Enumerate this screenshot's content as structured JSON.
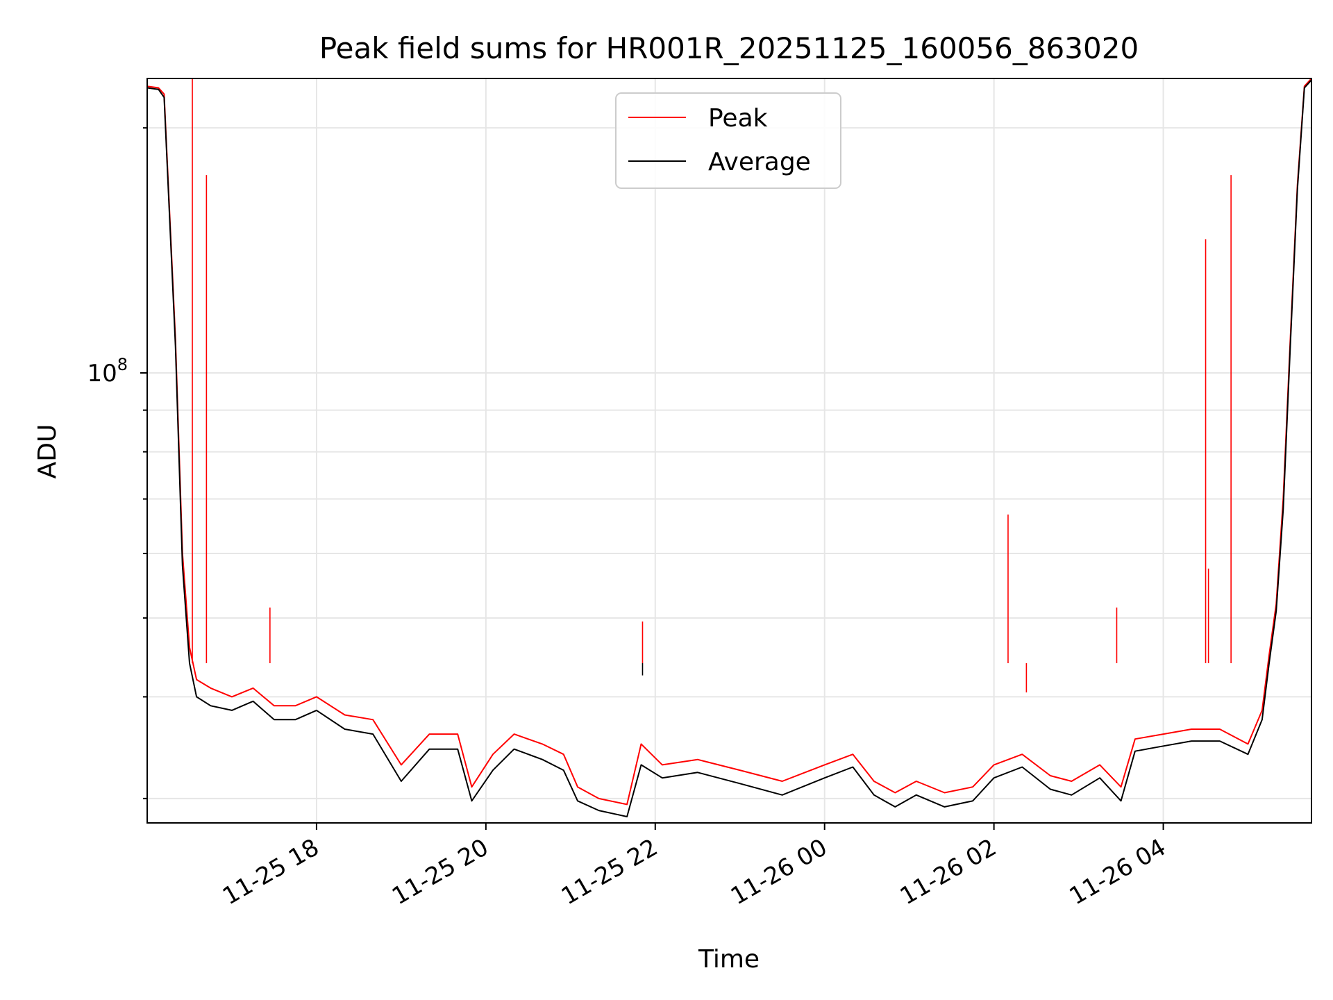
{
  "chart_data": {
    "type": "line",
    "title": "Peak field sums for HR001R_20251125_160056_863020",
    "xlabel": "Time",
    "ylabel": "ADU",
    "y_scale": "log",
    "grid": true,
    "legend_position": "upper center",
    "xlim": [
      "2025-11-25 16:00",
      "2025-11-26 05:45"
    ],
    "ylim": [
      28000000,
      230000000
    ],
    "x_ticks": [
      {
        "value": "2025-11-25 18:00",
        "label": "11-25 18"
      },
      {
        "value": "2025-11-25 20:00",
        "label": "11-25 20"
      },
      {
        "value": "2025-11-25 22:00",
        "label": "11-25 22"
      },
      {
        "value": "2025-11-26 00:00",
        "label": "11-26 00"
      },
      {
        "value": "2025-11-26 02:00",
        "label": "11-26 02"
      },
      {
        "value": "2025-11-26 04:00",
        "label": "11-26 04"
      }
    ],
    "y_ticks": [
      {
        "value": 100000000,
        "label_base": "10",
        "label_exp": "8"
      }
    ],
    "series": [
      {
        "name": "Peak",
        "color": "#ff0000",
        "x": [
          "2025-11-25 16:00",
          "2025-11-25 16:08",
          "2025-11-25 16:12",
          "2025-11-25 16:20",
          "2025-11-25 16:25",
          "2025-11-25 16:30",
          "2025-11-25 16:35",
          "2025-11-25 16:45",
          "2025-11-25 17:00",
          "2025-11-25 17:15",
          "2025-11-25 17:30",
          "2025-11-25 17:45",
          "2025-11-25 18:00",
          "2025-11-25 18:20",
          "2025-11-25 18:40",
          "2025-11-25 19:00",
          "2025-11-25 19:20",
          "2025-11-25 19:40",
          "2025-11-25 19:50",
          "2025-11-25 20:05",
          "2025-11-25 20:20",
          "2025-11-25 20:40",
          "2025-11-25 20:55",
          "2025-11-25 21:05",
          "2025-11-25 21:20",
          "2025-11-25 21:40",
          "2025-11-25 21:50",
          "2025-11-25 22:05",
          "2025-11-25 22:30",
          "2025-11-25 23:00",
          "2025-11-25 23:30",
          "2025-11-26 00:00",
          "2025-11-26 00:20",
          "2025-11-26 00:35",
          "2025-11-26 00:50",
          "2025-11-26 01:05",
          "2025-11-26 01:25",
          "2025-11-26 01:45",
          "2025-11-26 02:00",
          "2025-11-26 02:20",
          "2025-11-26 02:40",
          "2025-11-26 02:55",
          "2025-11-26 03:15",
          "2025-11-26 03:30",
          "2025-11-26 03:40",
          "2025-11-26 04:00",
          "2025-11-26 04:20",
          "2025-11-26 04:40",
          "2025-11-26 05:00",
          "2025-11-26 05:10",
          "2025-11-26 05:15",
          "2025-11-26 05:20",
          "2025-11-26 05:25",
          "2025-11-26 05:30",
          "2025-11-26 05:35",
          "2025-11-26 05:40",
          "2025-11-26 05:45"
        ],
        "y": [
          225000000,
          224000000,
          220000000,
          110000000,
          60000000,
          46000000,
          42000000,
          41000000,
          40000000,
          41000000,
          39000000,
          39000000,
          40000000,
          38000000,
          37500000,
          33000000,
          36000000,
          36000000,
          31000000,
          34000000,
          36000000,
          35000000,
          34000000,
          31000000,
          30000000,
          29500000,
          35000000,
          33000000,
          33500000,
          32500000,
          31500000,
          33000000,
          34000000,
          31500000,
          30500000,
          31500000,
          30500000,
          31000000,
          33000000,
          34000000,
          32000000,
          31500000,
          33000000,
          31000000,
          35500000,
          36000000,
          36500000,
          36500000,
          35000000,
          38500000,
          45000000,
          52000000,
          70000000,
          110000000,
          170000000,
          225000000,
          230000000
        ],
        "spikes": [
          {
            "x": "2025-11-25 16:32",
            "y": 230000000
          },
          {
            "x": "2025-11-25 16:42",
            "y": 175000000
          },
          {
            "x": "2025-11-25 17:27",
            "y": 51500000
          },
          {
            "x": "2025-11-25 21:51",
            "y": 49500000
          },
          {
            "x": "2025-11-26 02:10",
            "y": 67000000
          },
          {
            "x": "2025-11-26 02:23",
            "y": 40500000
          },
          {
            "x": "2025-11-26 03:27",
            "y": 51500000
          },
          {
            "x": "2025-11-26 04:30",
            "y": 146000000
          },
          {
            "x": "2025-11-26 04:32",
            "y": 57500000
          },
          {
            "x": "2025-11-26 04:48",
            "y": 175000000
          }
        ]
      },
      {
        "name": "Average",
        "color": "#000000",
        "x": [
          "2025-11-25 16:00",
          "2025-11-25 16:08",
          "2025-11-25 16:12",
          "2025-11-25 16:20",
          "2025-11-25 16:25",
          "2025-11-25 16:30",
          "2025-11-25 16:35",
          "2025-11-25 16:45",
          "2025-11-25 17:00",
          "2025-11-25 17:15",
          "2025-11-25 17:30",
          "2025-11-25 17:45",
          "2025-11-25 18:00",
          "2025-11-25 18:20",
          "2025-11-25 18:40",
          "2025-11-25 19:00",
          "2025-11-25 19:20",
          "2025-11-25 19:40",
          "2025-11-25 19:50",
          "2025-11-25 20:05",
          "2025-11-25 20:20",
          "2025-11-25 20:40",
          "2025-11-25 20:55",
          "2025-11-25 21:05",
          "2025-11-25 21:20",
          "2025-11-25 21:40",
          "2025-11-25 21:50",
          "2025-11-25 22:05",
          "2025-11-25 22:30",
          "2025-11-25 23:00",
          "2025-11-25 23:30",
          "2025-11-26 00:00",
          "2025-11-26 00:20",
          "2025-11-26 00:35",
          "2025-11-26 00:50",
          "2025-11-26 01:05",
          "2025-11-26 01:25",
          "2025-11-26 01:45",
          "2025-11-26 02:00",
          "2025-11-26 02:20",
          "2025-11-26 02:40",
          "2025-11-26 02:55",
          "2025-11-26 03:15",
          "2025-11-26 03:30",
          "2025-11-26 03:40",
          "2025-11-26 04:00",
          "2025-11-26 04:20",
          "2025-11-26 04:40",
          "2025-11-26 05:00",
          "2025-11-26 05:10",
          "2025-11-26 05:15",
          "2025-11-26 05:20",
          "2025-11-26 05:25",
          "2025-11-26 05:30",
          "2025-11-26 05:35",
          "2025-11-26 05:40",
          "2025-11-26 05:45"
        ],
        "y": [
          224000000,
          223000000,
          218000000,
          108000000,
          58000000,
          44000000,
          40000000,
          39000000,
          38500000,
          39500000,
          37500000,
          37500000,
          38500000,
          36500000,
          36000000,
          31500000,
          34500000,
          34500000,
          29800000,
          32500000,
          34500000,
          33500000,
          32500000,
          29800000,
          29000000,
          28500000,
          33000000,
          31800000,
          32300000,
          31300000,
          30300000,
          31800000,
          32800000,
          30300000,
          29300000,
          30300000,
          29300000,
          29800000,
          31800000,
          32800000,
          30800000,
          30300000,
          31800000,
          29800000,
          34300000,
          34800000,
          35300000,
          35300000,
          34000000,
          37500000,
          44000000,
          51000000,
          68000000,
          108000000,
          168000000,
          224000000,
          229000000
        ],
        "spikes": [
          {
            "x": "2025-11-25 21:51",
            "y": 42500000
          }
        ]
      }
    ]
  }
}
